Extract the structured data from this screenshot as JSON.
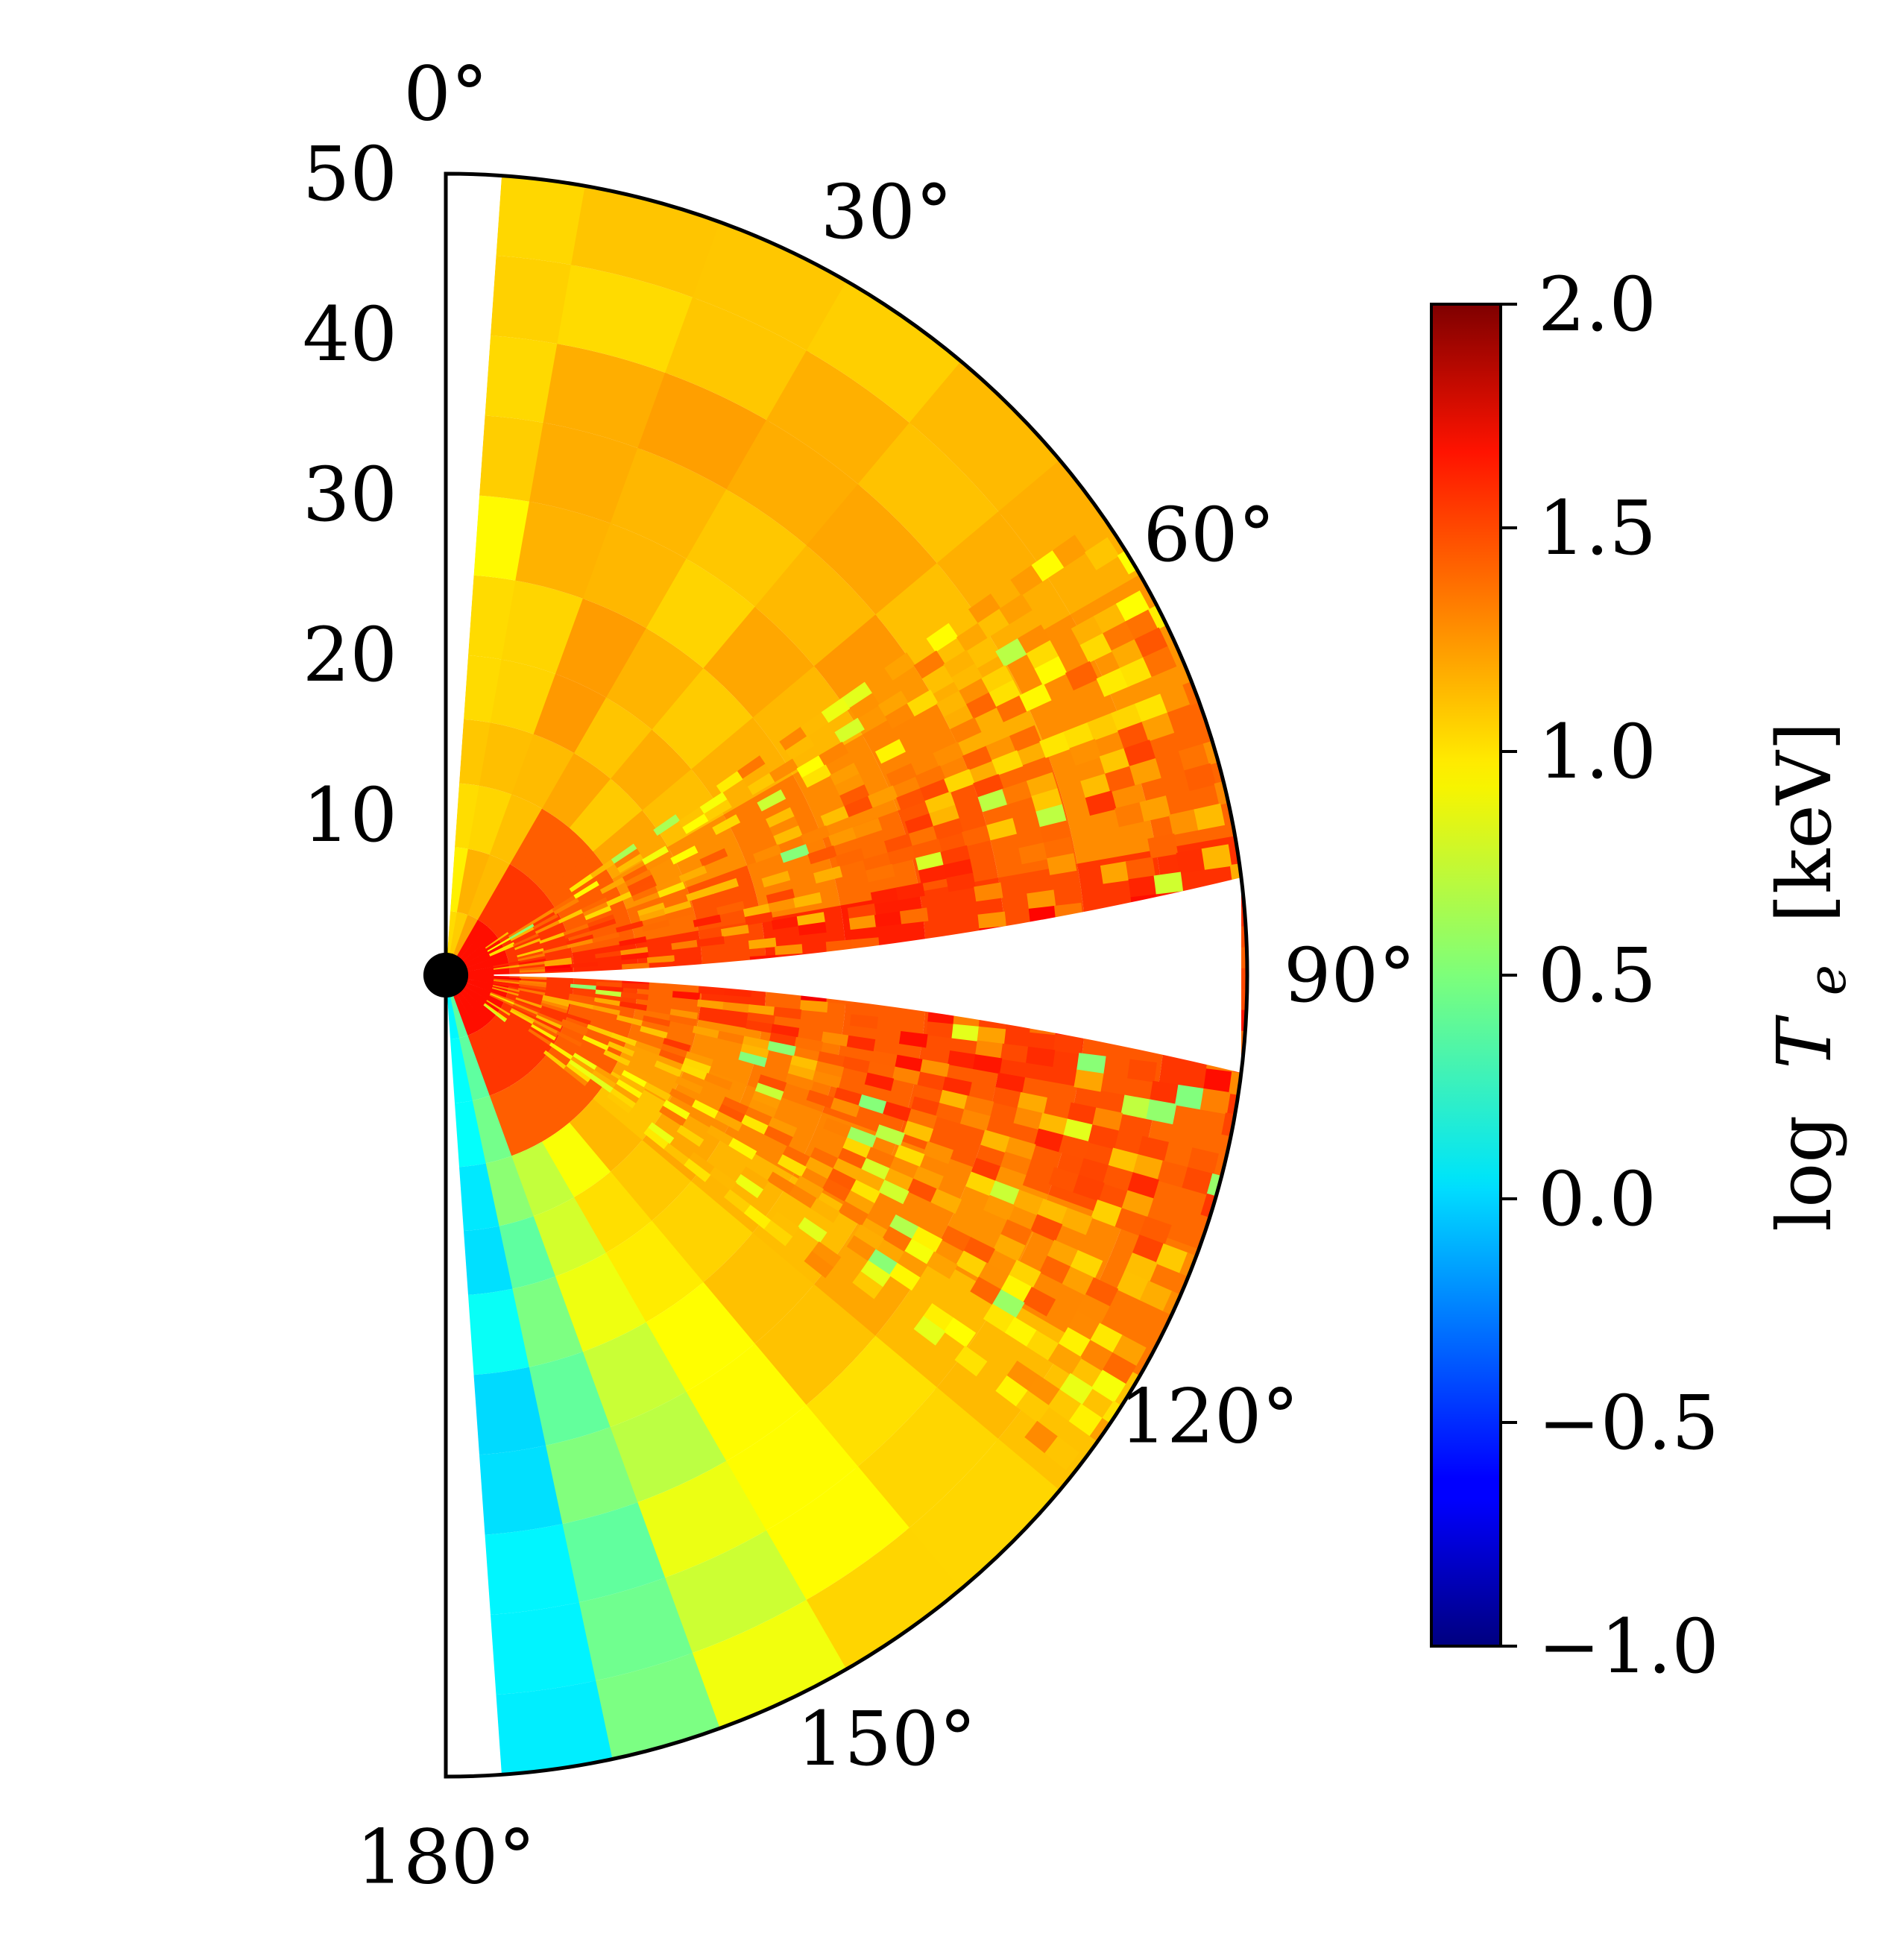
{
  "chart_data": {
    "type": "heatmap",
    "projection": "polar-half-disk",
    "title": "",
    "theta_ticks_deg": [
      0,
      30,
      60,
      90,
      120,
      150,
      180
    ],
    "theta_tick_labels": [
      "0°",
      "30°",
      "60°",
      "90°",
      "120°",
      "150°",
      "180°"
    ],
    "r_ticks": [
      10,
      20,
      30,
      40,
      50
    ],
    "r_tick_labels": [
      "10",
      "20",
      "30",
      "40",
      "50"
    ],
    "r_lim": [
      0,
      50
    ],
    "theta_lim_deg": [
      0,
      180
    ],
    "colorbar": {
      "label": "log T_e [keV]",
      "label_parts": {
        "func": "log",
        "var": "T",
        "sub": "e",
        "unit": "[keV]"
      },
      "range": [
        -1.0,
        2.0
      ],
      "ticks": [
        -1.0,
        -0.5,
        0.0,
        0.5,
        1.0,
        1.5,
        2.0
      ],
      "tick_labels": [
        "−1.0",
        "−0.5",
        "0.0",
        "0.5",
        "1.0",
        "1.5",
        "2.0"
      ],
      "colormap": "jet"
    },
    "empty_wedge_deg": [
      [
        0,
        4
      ],
      [
        176,
        180
      ]
    ],
    "disk_gap_deg": {
      "center": 90,
      "half_width_at_r50": 7,
      "half_width_at_r5": 1
    },
    "angular_bands": [
      {
        "theta": [
          4,
          10
        ],
        "value": 0.95
      },
      {
        "theta": [
          10,
          20
        ],
        "value": 1.05
      },
      {
        "theta": [
          20,
          30
        ],
        "value": 1.1
      },
      {
        "theta": [
          30,
          40
        ],
        "value": 1.05
      },
      {
        "theta": [
          40,
          50
        ],
        "value": 1.1
      },
      {
        "theta": [
          50,
          60
        ],
        "value": 1.15
      },
      {
        "theta": [
          60,
          70
        ],
        "value": 1.2
      },
      {
        "theta": [
          70,
          80
        ],
        "value": 1.3
      },
      {
        "theta": [
          80,
          90
        ],
        "value": 1.45
      },
      {
        "theta": [
          90,
          100
        ],
        "value": 1.4
      },
      {
        "theta": [
          100,
          110
        ],
        "value": 1.3
      },
      {
        "theta": [
          110,
          120
        ],
        "value": 1.2
      },
      {
        "theta": [
          120,
          130
        ],
        "value": 1.1
      },
      {
        "theta": [
          130,
          140
        ],
        "value": 1.0
      },
      {
        "theta": [
          140,
          150
        ],
        "value": 0.95
      },
      {
        "theta": [
          150,
          160
        ],
        "value": 0.75
      },
      {
        "theta": [
          160,
          168
        ],
        "value": 0.45
      },
      {
        "theta": [
          168,
          176
        ],
        "value": 0.1
      }
    ],
    "inner_region": {
      "r_max": 12,
      "value": 1.7
    },
    "central_object": {
      "r": 2,
      "color": "#000000"
    }
  }
}
